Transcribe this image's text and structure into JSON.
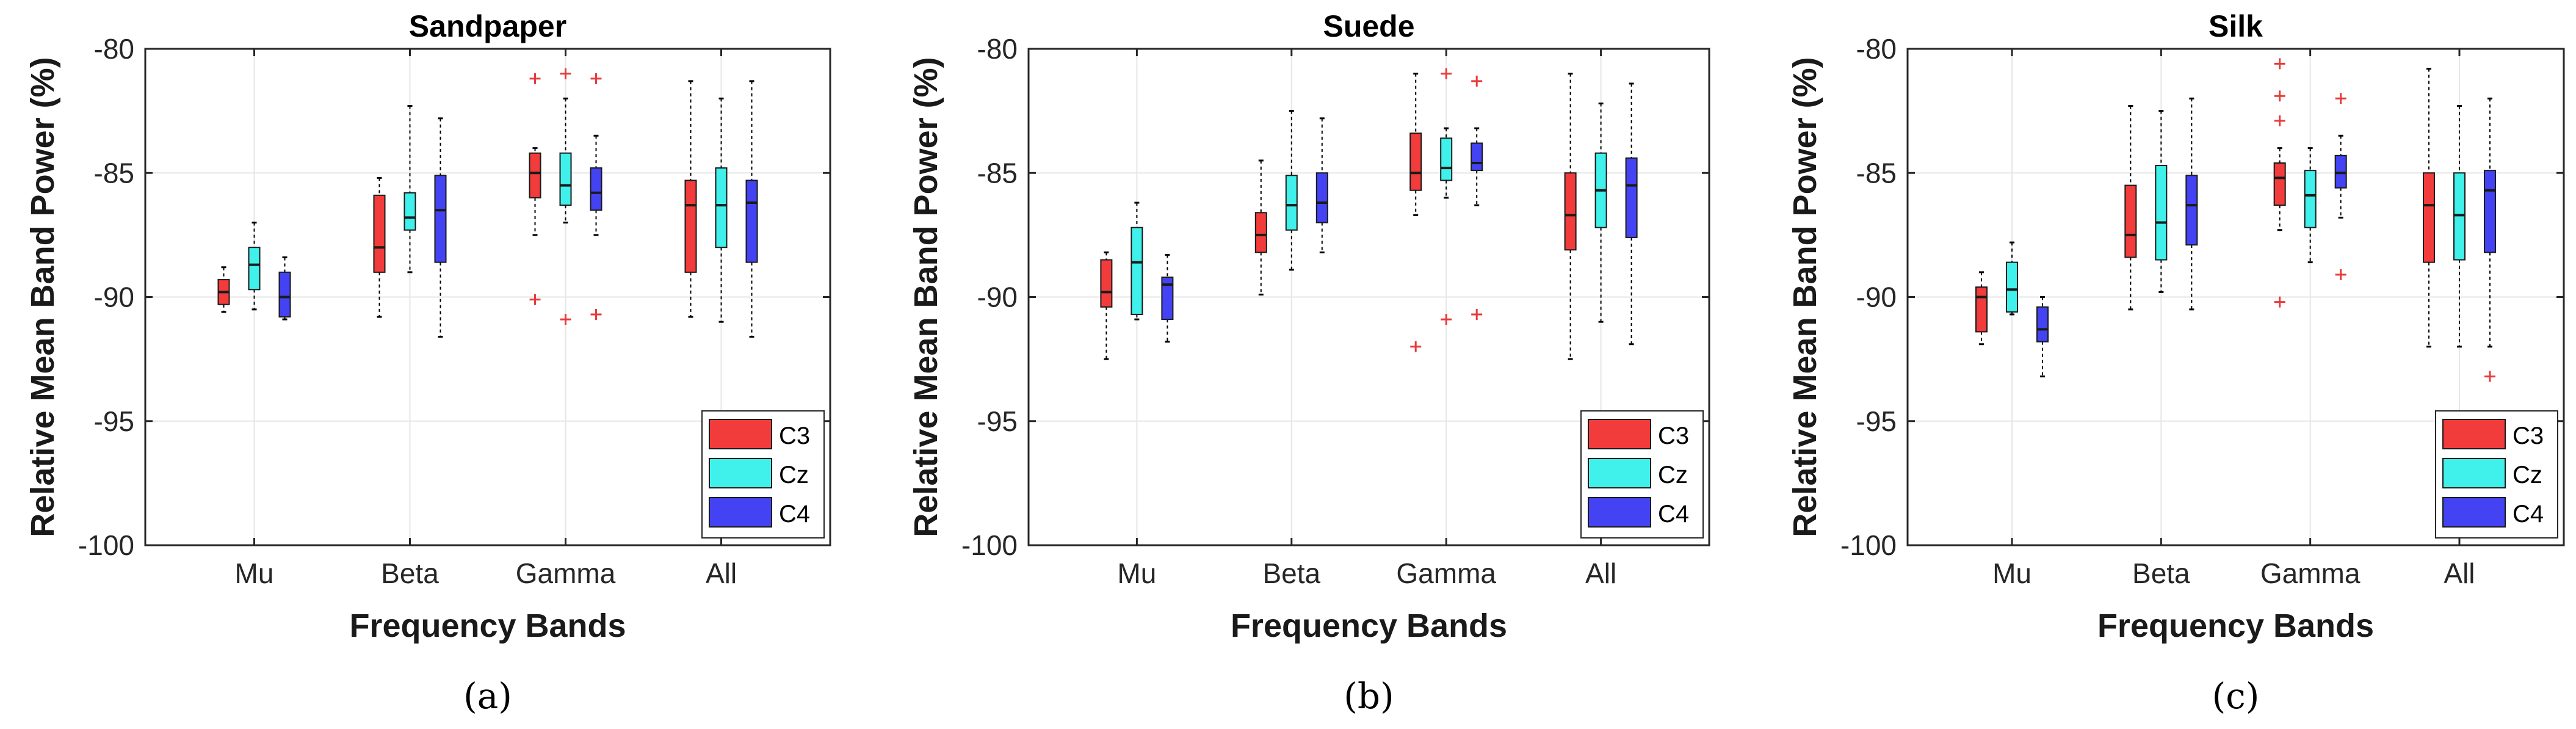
{
  "chart_data": [
    {
      "type": "box",
      "title": "Sandpaper",
      "caption": "(a)",
      "xlabel": "Frequency Bands",
      "ylabel": "Relative Mean Band Power (%)",
      "ylim": [
        -100,
        -80
      ],
      "yticks": [
        -100,
        -95,
        -90,
        -85,
        -80
      ],
      "ytick_labels": [
        "-100",
        "-95",
        "-90",
        "-85",
        "-80"
      ],
      "categories": [
        "Mu",
        "Beta",
        "Gamma",
        "All"
      ],
      "legend": [
        "C3",
        "Cz",
        "C4"
      ],
      "series": [
        {
          "name": "C3",
          "boxes": [
            {
              "wlo": -90.6,
              "q1": -90.3,
              "med": -89.8,
              "q3": -89.3,
              "whi": -88.8,
              "out": []
            },
            {
              "wlo": -90.8,
              "q1": -89.0,
              "med": -88.0,
              "q3": -85.9,
              "whi": -85.2,
              "out": []
            },
            {
              "wlo": -87.5,
              "q1": -86.0,
              "med": -85.0,
              "q3": -84.2,
              "whi": -84.0,
              "out": [
                -81.2,
                -90.1
              ]
            },
            {
              "wlo": -90.8,
              "q1": -89.0,
              "med": -86.3,
              "q3": -85.3,
              "whi": -81.3,
              "out": []
            }
          ]
        },
        {
          "name": "Cz",
          "boxes": [
            {
              "wlo": -90.5,
              "q1": -89.7,
              "med": -88.7,
              "q3": -88.0,
              "whi": -87.0,
              "out": []
            },
            {
              "wlo": -89.0,
              "q1": -87.3,
              "med": -86.8,
              "q3": -85.8,
              "whi": -82.3,
              "out": []
            },
            {
              "wlo": -87.0,
              "q1": -86.3,
              "med": -85.5,
              "q3": -84.2,
              "whi": -82.0,
              "out": [
                -81.0,
                -90.9
              ]
            },
            {
              "wlo": -91.0,
              "q1": -88.0,
              "med": -86.3,
              "q3": -84.8,
              "whi": -82.0,
              "out": []
            }
          ]
        },
        {
          "name": "C4",
          "boxes": [
            {
              "wlo": -90.9,
              "q1": -90.8,
              "med": -90.0,
              "q3": -89.0,
              "whi": -88.4,
              "out": []
            },
            {
              "wlo": -91.6,
              "q1": -88.6,
              "med": -86.5,
              "q3": -85.1,
              "whi": -82.8,
              "out": []
            },
            {
              "wlo": -87.5,
              "q1": -86.5,
              "med": -85.8,
              "q3": -84.8,
              "whi": -83.5,
              "out": [
                -81.2,
                -90.7
              ]
            },
            {
              "wlo": -91.6,
              "q1": -88.6,
              "med": -86.2,
              "q3": -85.3,
              "whi": -81.3,
              "out": []
            }
          ]
        }
      ]
    },
    {
      "type": "box",
      "title": "Suede",
      "caption": "(b)",
      "xlabel": "Frequency Bands",
      "ylabel": "Relative Mean Band Power (%)",
      "ylim": [
        -100,
        -80
      ],
      "yticks": [
        -100,
        -95,
        -90,
        -85,
        -80
      ],
      "ytick_labels": [
        "-100",
        "-95",
        "-90",
        "-85",
        "-80"
      ],
      "categories": [
        "Mu",
        "Beta",
        "Gamma",
        "All"
      ],
      "legend": [
        "C3",
        "Cz",
        "C4"
      ],
      "series": [
        {
          "name": "C3",
          "boxes": [
            {
              "wlo": -92.5,
              "q1": -90.4,
              "med": -89.8,
              "q3": -88.5,
              "whi": -88.2,
              "out": []
            },
            {
              "wlo": -89.9,
              "q1": -88.2,
              "med": -87.5,
              "q3": -86.6,
              "whi": -84.5,
              "out": []
            },
            {
              "wlo": -86.7,
              "q1": -85.7,
              "med": -85.0,
              "q3": -83.4,
              "whi": -81.0,
              "out": [
                -92.0
              ]
            },
            {
              "wlo": -92.5,
              "q1": -88.1,
              "med": -86.7,
              "q3": -85.0,
              "whi": -81.0,
              "out": []
            }
          ]
        },
        {
          "name": "Cz",
          "boxes": [
            {
              "wlo": -90.9,
              "q1": -90.7,
              "med": -88.6,
              "q3": -87.2,
              "whi": -86.2,
              "out": []
            },
            {
              "wlo": -88.9,
              "q1": -87.3,
              "med": -86.3,
              "q3": -85.1,
              "whi": -82.5,
              "out": []
            },
            {
              "wlo": -86.0,
              "q1": -85.3,
              "med": -84.8,
              "q3": -83.6,
              "whi": -83.2,
              "out": [
                -81.0,
                -90.9
              ]
            },
            {
              "wlo": -91.0,
              "q1": -87.2,
              "med": -85.7,
              "q3": -84.2,
              "whi": -82.2,
              "out": []
            }
          ]
        },
        {
          "name": "C4",
          "boxes": [
            {
              "wlo": -91.8,
              "q1": -90.9,
              "med": -89.5,
              "q3": -89.2,
              "whi": -88.3,
              "out": []
            },
            {
              "wlo": -88.2,
              "q1": -87.0,
              "med": -86.2,
              "q3": -85.0,
              "whi": -82.8,
              "out": []
            },
            {
              "wlo": -86.3,
              "q1": -84.9,
              "med": -84.6,
              "q3": -83.8,
              "whi": -83.2,
              "out": [
                -81.3,
                -90.7
              ]
            },
            {
              "wlo": -91.9,
              "q1": -87.6,
              "med": -85.5,
              "q3": -84.4,
              "whi": -81.4,
              "out": []
            }
          ]
        }
      ]
    },
    {
      "type": "box",
      "title": "Silk",
      "caption": "(c)",
      "xlabel": "Frequency Bands",
      "ylabel": "Relative Mean Band Power (%)",
      "ylim": [
        -100,
        -80
      ],
      "yticks": [
        -100,
        -95,
        -90,
        -85,
        -80
      ],
      "ytick_labels": [
        "-100",
        "-95",
        "-90",
        "-85",
        "-80"
      ],
      "categories": [
        "Mu",
        "Beta",
        "Gamma",
        "All"
      ],
      "legend": [
        "C3",
        "Cz",
        "C4"
      ],
      "series": [
        {
          "name": "C3",
          "boxes": [
            {
              "wlo": -91.9,
              "q1": -91.4,
              "med": -90.0,
              "q3": -89.6,
              "whi": -89.0,
              "out": []
            },
            {
              "wlo": -90.5,
              "q1": -88.4,
              "med": -87.5,
              "q3": -85.5,
              "whi": -82.3,
              "out": []
            },
            {
              "wlo": -87.3,
              "q1": -86.3,
              "med": -85.2,
              "q3": -84.6,
              "whi": -84.0,
              "out": [
                -80.6,
                -81.9,
                -82.9,
                -90.2
              ]
            },
            {
              "wlo": -92.0,
              "q1": -88.6,
              "med": -86.3,
              "q3": -85.0,
              "whi": -80.8,
              "out": []
            }
          ]
        },
        {
          "name": "Cz",
          "boxes": [
            {
              "wlo": -90.7,
              "q1": -90.6,
              "med": -89.7,
              "q3": -88.6,
              "whi": -87.8,
              "out": []
            },
            {
              "wlo": -89.8,
              "q1": -88.5,
              "med": -87.0,
              "q3": -84.7,
              "whi": -82.5,
              "out": []
            },
            {
              "wlo": -88.6,
              "q1": -87.2,
              "med": -85.9,
              "q3": -84.9,
              "whi": -84.0,
              "out": []
            },
            {
              "wlo": -92.0,
              "q1": -88.5,
              "med": -86.7,
              "q3": -85.0,
              "whi": -82.3,
              "out": []
            }
          ]
        },
        {
          "name": "C4",
          "boxes": [
            {
              "wlo": -93.2,
              "q1": -91.8,
              "med": -91.3,
              "q3": -90.4,
              "whi": -90.0,
              "out": []
            },
            {
              "wlo": -90.5,
              "q1": -87.9,
              "med": -86.3,
              "q3": -85.1,
              "whi": -82.0,
              "out": []
            },
            {
              "wlo": -86.8,
              "q1": -85.6,
              "med": -85.0,
              "q3": -84.3,
              "whi": -83.5,
              "out": [
                -82.0,
                -89.1
              ]
            },
            {
              "wlo": -92.0,
              "q1": -88.2,
              "med": -85.7,
              "q3": -84.9,
              "whi": -82.0,
              "out": [
                -93.2
              ]
            }
          ]
        }
      ]
    }
  ],
  "colors": {
    "C3": "#f23b3b",
    "Cz": "#3ff1ea",
    "C4": "#4343f4",
    "outlier": "#e83a3a",
    "grid": "#e6e6e6",
    "axis": "#262626"
  }
}
